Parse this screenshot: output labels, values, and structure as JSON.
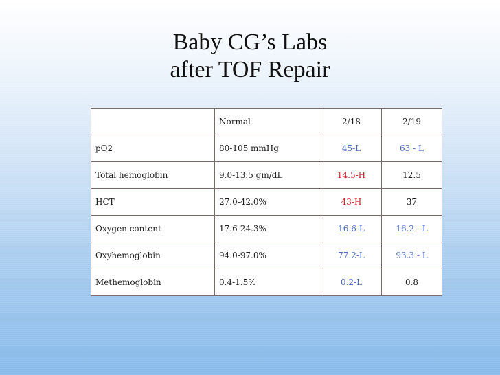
{
  "title": {
    "line1": "Baby CG’s Labs",
    "line2": "after TOF Repair"
  },
  "colors": {
    "low": "#4a6ac4",
    "high": "#d2232a",
    "normal": "#222222"
  },
  "table": {
    "header": [
      "",
      "Normal",
      "2/18",
      "2/19"
    ],
    "rows": [
      {
        "test": "pO2",
        "normal": "80-105 mmHg",
        "d218": "45-L",
        "d218_flag": "low",
        "d219": "63 - L",
        "d219_flag": "low"
      },
      {
        "test": "Total hemoglobin",
        "normal": "9.0-13.5 gm/dL",
        "d218": "14.5-H",
        "d218_flag": "high",
        "d219": "12.5",
        "d219_flag": "normal"
      },
      {
        "test": "HCT",
        "normal": "27.0-42.0%",
        "d218": "43-H",
        "d218_flag": "high",
        "d219": "37",
        "d219_flag": "normal"
      },
      {
        "test": "Oxygen content",
        "normal": "17.6-24.3%",
        "d218": "16.6-L",
        "d218_flag": "low",
        "d219": "16.2 - L",
        "d219_flag": "low"
      },
      {
        "test": "Oxyhemoglobin",
        "normal": "94.0-97.0%",
        "d218": "77.2-L",
        "d218_flag": "low",
        "d219": "93.3 - L",
        "d219_flag": "low"
      },
      {
        "test": "Methemoglobin",
        "normal": "0.4-1.5%",
        "d218": "0.2-L",
        "d218_flag": "low",
        "d219": "0.8",
        "d219_flag": "normal"
      }
    ]
  }
}
